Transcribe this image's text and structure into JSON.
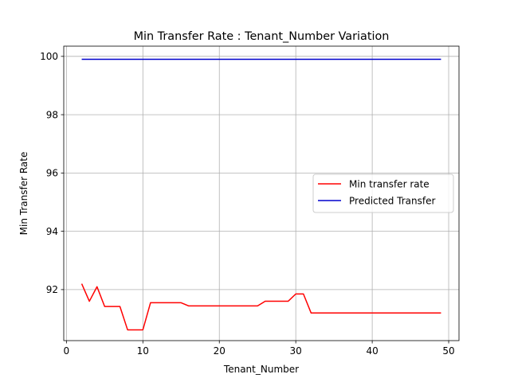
{
  "chart_data": {
    "type": "line",
    "title": "Min Transfer Rate : Tenant_Number Variation",
    "xlabel": "Tenant_Number",
    "ylabel": "Min Transfer Rate",
    "xlim": [
      -0.35,
      51.35
    ],
    "ylim": [
      90.25,
      100.35
    ],
    "xticks": [
      0,
      10,
      20,
      30,
      40,
      50
    ],
    "yticks": [
      92,
      94,
      96,
      98,
      100
    ],
    "grid": true,
    "legend_position": "center-right",
    "series": [
      {
        "name": "Min transfer rate",
        "color": "#ff0000",
        "x": [
          2,
          3,
          4,
          5,
          6,
          7,
          8,
          9,
          10,
          11,
          12,
          13,
          14,
          15,
          16,
          17,
          18,
          19,
          20,
          21,
          22,
          23,
          24,
          25,
          26,
          27,
          28,
          29,
          30,
          31,
          32,
          33,
          34,
          35,
          36,
          37,
          38,
          39,
          40,
          41,
          42,
          43,
          44,
          45,
          46,
          47,
          48,
          49
        ],
        "y": [
          92.2,
          91.6,
          92.1,
          91.42,
          91.42,
          91.42,
          90.62,
          90.62,
          90.62,
          91.55,
          91.55,
          91.55,
          91.55,
          91.55,
          91.44,
          91.44,
          91.44,
          91.44,
          91.44,
          91.44,
          91.44,
          91.44,
          91.44,
          91.44,
          91.6,
          91.6,
          91.6,
          91.6,
          91.85,
          91.85,
          91.2,
          91.2,
          91.2,
          91.2,
          91.2,
          91.2,
          91.2,
          91.2,
          91.2,
          91.2,
          91.2,
          91.2,
          91.2,
          91.2,
          91.2,
          91.2,
          91.2,
          91.2
        ]
      },
      {
        "name": "Predicted Transfer",
        "color": "#0000cd",
        "x": [
          2,
          49
        ],
        "y": [
          99.9,
          99.9
        ]
      }
    ]
  }
}
